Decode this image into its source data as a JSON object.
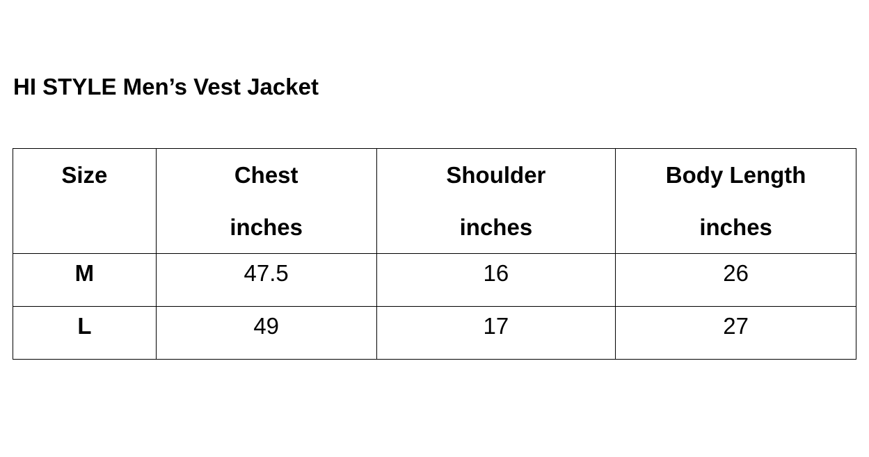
{
  "title": "HI STYLE Men’s Vest Jacket",
  "headers": [
    {
      "label": "Size",
      "unit": ""
    },
    {
      "label": "Chest",
      "unit": "inches"
    },
    {
      "label": "Shoulder",
      "unit": "inches"
    },
    {
      "label": "Body Length",
      "unit": "inches"
    }
  ],
  "rows": [
    [
      "M",
      "47.5",
      "16",
      "26"
    ],
    [
      "L",
      "49",
      "17",
      "27"
    ]
  ]
}
